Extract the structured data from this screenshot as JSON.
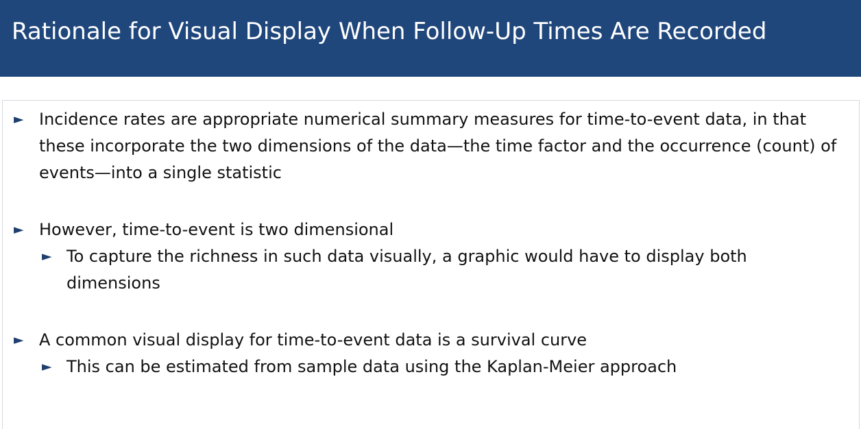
{
  "slide": {
    "title": "Rationale for Visual Display When Follow-Up Times Are Recorded",
    "bullets": [
      {
        "text": "Incidence rates are appropriate numerical summary measures for time-to-event data, in that these incorporate the two dimensions of the data—the time factor and the occurrence (count) of events—into a single statistic"
      },
      {
        "text": "However, time-to-event is two dimensional",
        "sub": "To capture the richness in such data visually, a graphic would have to display both dimensions"
      },
      {
        "text": "A common visual display for time-to-event data is a survival curve",
        "sub": "This can be estimated from sample data using the Kaplan-Meier approach"
      }
    ],
    "bullet_marker": "►",
    "colors": {
      "title_bar": "#20477c",
      "title_text": "#ffffff",
      "bullet_marker": "#1f3f6e",
      "body_text": "#111111"
    }
  }
}
